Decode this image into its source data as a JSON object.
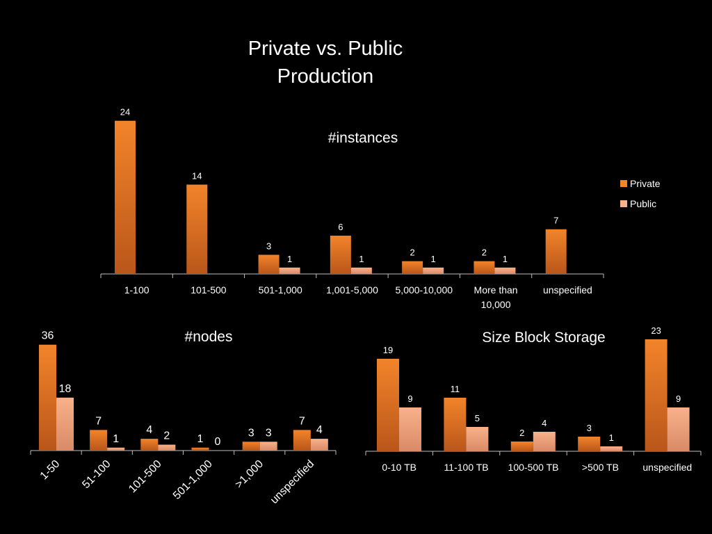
{
  "slide": {
    "title_line1": "Private vs. Public",
    "title_line2": "Production"
  },
  "colors": {
    "background": "#000000",
    "private_top": "#f2842a",
    "private_bottom": "#b9561a",
    "public_top": "#f8b28a",
    "public_bottom": "#d98a66",
    "axis": "#bfbfbf",
    "text": "#ffffff"
  },
  "chart_data": [
    {
      "type": "bar",
      "title": "#instances",
      "categories": [
        "1-100",
        "101-500",
        "501-1,000",
        "1,001-5,000",
        "5,000-10,000",
        "More than 10,000",
        "unspecified"
      ],
      "series": [
        {
          "name": "Private",
          "values": [
            24,
            14,
            3,
            6,
            2,
            2,
            7
          ]
        },
        {
          "name": "Public",
          "values": [
            null,
            null,
            1,
            1,
            1,
            1,
            null
          ]
        }
      ],
      "legend": "right",
      "grid": false,
      "data_labels": true
    },
    {
      "type": "bar",
      "title": "#nodes",
      "categories": [
        "1-50",
        "51-100",
        "101-500",
        "501-1,000",
        ">1,000",
        "unspecified"
      ],
      "series": [
        {
          "name": "Private",
          "values": [
            36,
            7,
            4,
            1,
            3,
            7
          ]
        },
        {
          "name": "Public",
          "values": [
            18,
            1,
            2,
            0,
            3,
            4
          ]
        }
      ],
      "tick_rotation": "rotated",
      "grid": false,
      "data_labels": true
    },
    {
      "type": "bar",
      "title": "Size Block Storage",
      "categories": [
        "0-10 TB",
        "11-100 TB",
        "100-500 TB",
        ">500 TB",
        "unspecified"
      ],
      "series": [
        {
          "name": "Private",
          "values": [
            19,
            11,
            2,
            3,
            23
          ]
        },
        {
          "name": "Public",
          "values": [
            9,
            5,
            4,
            1,
            9
          ]
        }
      ],
      "grid": false,
      "data_labels": true
    }
  ]
}
